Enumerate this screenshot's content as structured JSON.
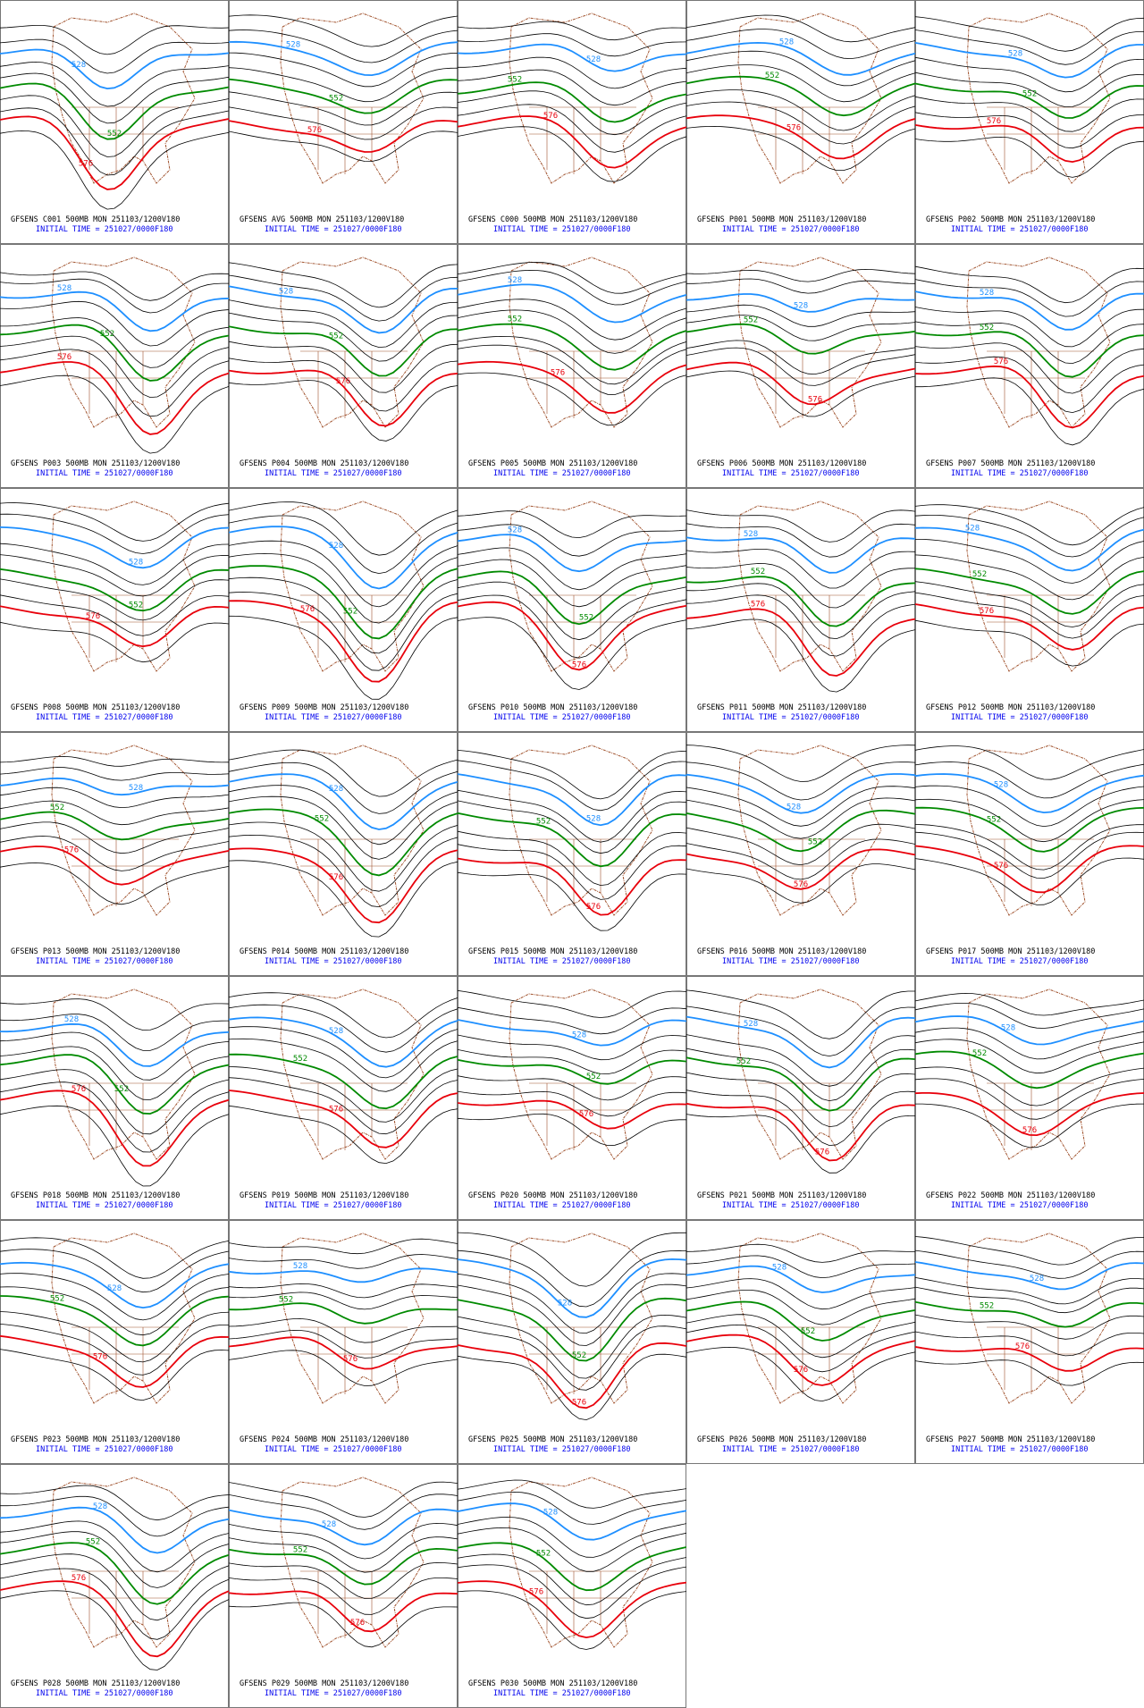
{
  "contours": [
    {
      "label": "528",
      "color": "#1e8fff"
    },
    {
      "label": "552",
      "color": "#008a00"
    },
    {
      "label": "576",
      "color": "#e8000b"
    }
  ],
  "initial_time": "INITIAL TIME = 251027/0000F180",
  "panels": [
    "GFSENS C001 500MB MON 251103/1200V180",
    "GFSENS AVG 500MB MON 251103/1200V180",
    "GFSENS C000 500MB MON 251103/1200V180",
    "GFSENS P001 500MB MON 251103/1200V180",
    "GFSENS P002 500MB MON 251103/1200V180",
    "GFSENS P003 500MB MON 251103/1200V180",
    "GFSENS P004 500MB MON 251103/1200V180",
    "GFSENS P005 500MB MON 251103/1200V180",
    "GFSENS P006 500MB MON 251103/1200V180",
    "GFSENS P007 500MB MON 251103/1200V180",
    "GFSENS P008 500MB MON 251103/1200V180",
    "GFSENS P009 500MB MON 251103/1200V180",
    "GFSENS P010 500MB MON 251103/1200V180",
    "GFSENS P011 500MB MON 251103/1200V180",
    "GFSENS P012 500MB MON 251103/1200V180",
    "GFSENS P013 500MB MON 251103/1200V180",
    "GFSENS P014 500MB MON 251103/1200V180",
    "GFSENS P015 500MB MON 251103/1200V180",
    "GFSENS P016 500MB MON 251103/1200V180",
    "GFSENS P017 500MB MON 251103/1200V180",
    "GFSENS P018 500MB MON 251103/1200V180",
    "GFSENS P019 500MB MON 251103/1200V180",
    "GFSENS P020 500MB MON 251103/1200V180",
    "GFSENS P021 500MB MON 251103/1200V180",
    "GFSENS P022 500MB MON 251103/1200V180",
    "GFSENS P023 500MB MON 251103/1200V180",
    "GFSENS P024 500MB MON 251103/1200V180",
    "GFSENS P025 500MB MON 251103/1200V180",
    "GFSENS P026 500MB MON 251103/1200V180",
    "GFSENS P027 500MB MON 251103/1200V180",
    "GFSENS P028 500MB MON 251103/1200V180",
    "GFSENS P029 500MB MON 251103/1200V180",
    "GFSENS P030 500MB MON 251103/1200V180"
  ]
}
